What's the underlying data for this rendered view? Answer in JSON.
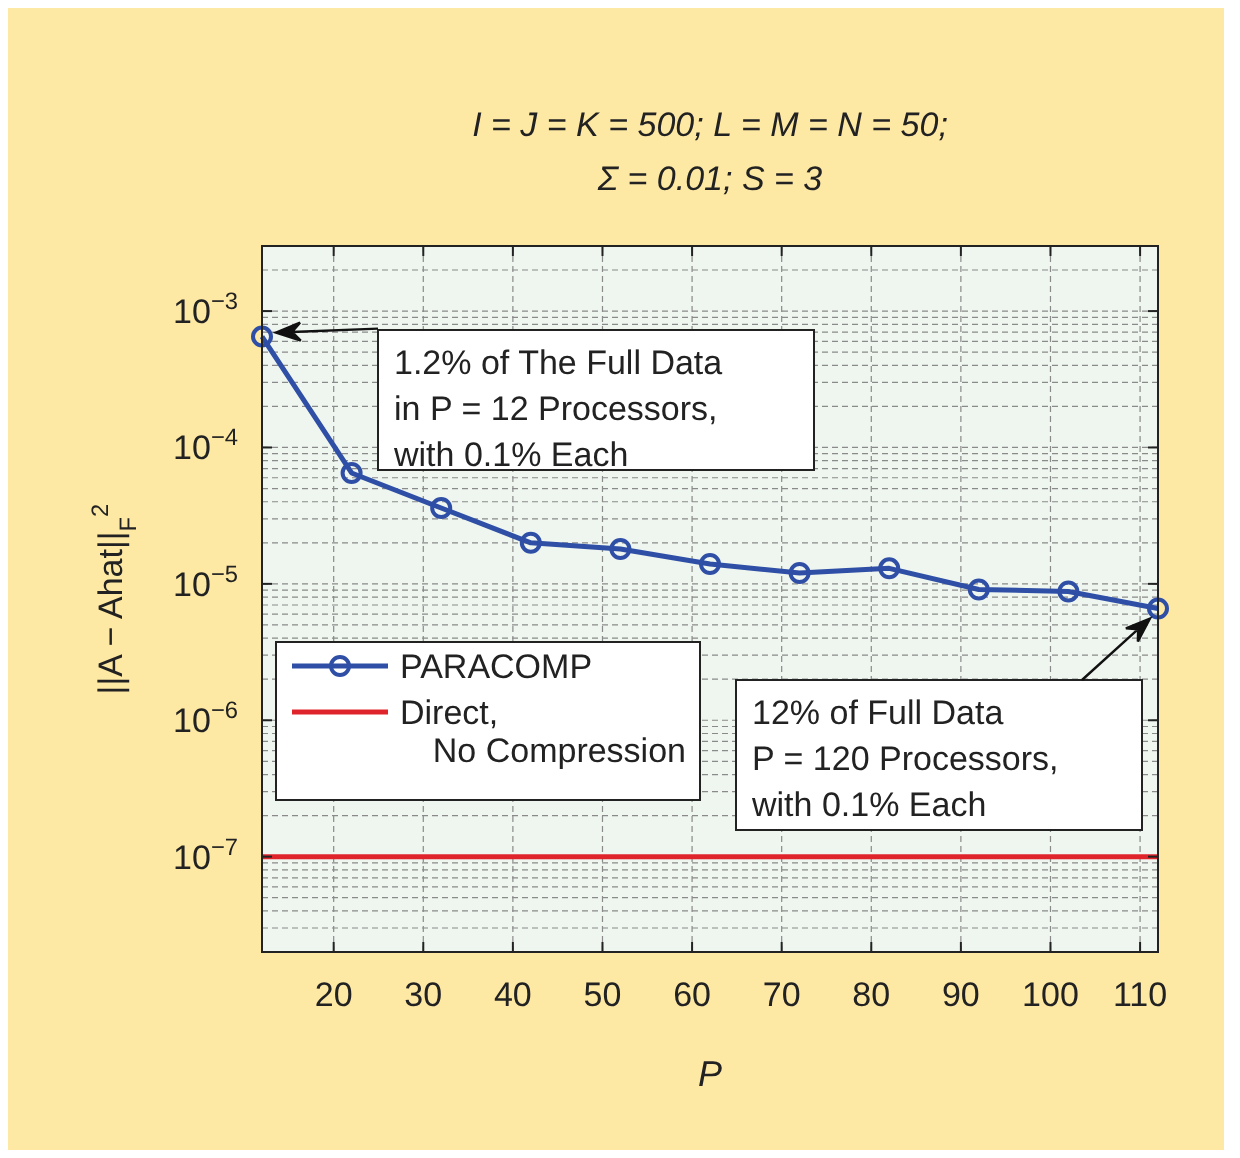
{
  "chart_data": {
    "type": "line",
    "title": "I = J = K = 500; L = M = N = 50;",
    "subtitle": "Σ = 0.01; S = 3",
    "xlabel": "P",
    "ylabel": "||A − Ahat||$_{F}$$^{2}$",
    "x": [
      12,
      22,
      32,
      42,
      52,
      62,
      72,
      82,
      92,
      102,
      112
    ],
    "series": [
      {
        "name": "PARACOMP",
        "color": "#2f4ea6",
        "marker": "circle",
        "values": [
          0.00065,
          6.5e-05,
          3.6e-05,
          2e-05,
          1.8e-05,
          1.4e-05,
          1.2e-05,
          1.3e-05,
          9.1e-06,
          8.8e-06,
          6.6e-06
        ]
      },
      {
        "name": "Direct,\nNo Compression",
        "color": "#e0242c",
        "marker": "none",
        "values": [
          1e-07,
          1e-07,
          1e-07,
          1e-07,
          1e-07,
          1e-07,
          1e-07,
          1e-07,
          1e-07,
          1e-07,
          1e-07
        ]
      }
    ],
    "xlim": [
      12,
      112
    ],
    "xticks": [
      20,
      30,
      40,
      50,
      60,
      70,
      80,
      90,
      100,
      110
    ],
    "ylim": [
      2e-08,
      0.003
    ],
    "yticks": [
      {
        "value": 1e-07,
        "label": "10$^{−7}$"
      },
      {
        "value": 1e-06,
        "label": "10$^{−6}$"
      },
      {
        "value": 1e-05,
        "label": "10$^{−5}$"
      },
      {
        "value": 0.0001,
        "label": "10$^{−4}$"
      },
      {
        "value": 0.001,
        "label": "10$^{−3}$"
      }
    ],
    "log": true,
    "grid": true,
    "legend": "bottom left",
    "line_style": "solid",
    "annotations": [
      "1.2% of The Full Data\nin P = 12 Processors,\nwith 0.1% Each",
      "12% of Full Data\nP = 120 Processors,\nwith 0.1% Each"
    ]
  }
}
